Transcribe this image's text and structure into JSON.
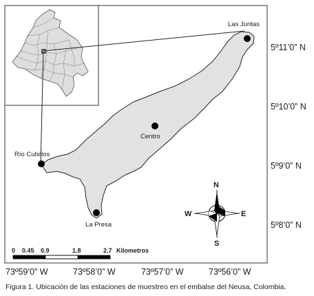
{
  "stations": [
    {
      "id": "las-juntas",
      "label": "Las Juntas"
    },
    {
      "id": "centro",
      "label": "Centro"
    },
    {
      "id": "rio-cubillos",
      "label": "Río Cubillos"
    },
    {
      "id": "la-presa",
      "label": "La Presa"
    }
  ],
  "lat_labels": [
    "5º11’0” N",
    "5º10’0” N",
    "5º9’0” N",
    "5º8’0” N"
  ],
  "lon_labels": [
    "73º59’0” W",
    "73º58’0” W",
    "73º57’0” W",
    "73º56’0” W"
  ],
  "compass": {
    "n": "N",
    "s": "S",
    "e": "E",
    "w": "W"
  },
  "scale": {
    "ticks": [
      "0",
      "0.45",
      "0.9",
      "1.8",
      "2.7"
    ],
    "unit": "Kilometros"
  },
  "caption": "Figura 1. Ubicación de las estaciones de muestreo en el embalse del Neusa, Colombia."
}
